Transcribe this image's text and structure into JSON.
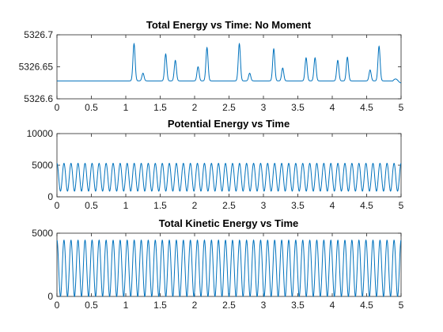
{
  "chart_data": [
    {
      "type": "line",
      "title": "Total Energy vs Time: No Moment",
      "xlabel": "",
      "ylabel": "",
      "xlim": [
        0,
        5
      ],
      "ylim": [
        5326.6,
        5326.7
      ],
      "xticks": [
        0,
        0.5,
        1,
        1.5,
        2,
        2.5,
        3,
        3.5,
        4,
        4.5,
        5
      ],
      "xtick_labels": [
        "0",
        "0.5",
        "1",
        "1.5",
        "2",
        "2.5",
        "3",
        "3.5",
        "4",
        "4.5",
        "5"
      ],
      "yticks": [
        5326.6,
        5326.65,
        5326.7
      ],
      "ytick_labels": [
        "5326.6",
        "5326.65",
        "5326.7"
      ],
      "grid": false,
      "color": "#0072BD",
      "series": [
        {
          "baseline": 5326.628,
          "peaks": [
            {
              "x": 1.12,
              "y": 5326.686
            },
            {
              "x": 1.25,
              "y": 5326.64
            },
            {
              "x": 1.58,
              "y": 5326.67
            },
            {
              "x": 1.72,
              "y": 5326.66
            },
            {
              "x": 2.05,
              "y": 5326.65
            },
            {
              "x": 2.18,
              "y": 5326.68
            },
            {
              "x": 2.65,
              "y": 5326.686
            },
            {
              "x": 2.8,
              "y": 5326.64
            },
            {
              "x": 3.15,
              "y": 5326.678
            },
            {
              "x": 3.28,
              "y": 5326.648
            },
            {
              "x": 3.62,
              "y": 5326.664
            },
            {
              "x": 3.75,
              "y": 5326.664
            },
            {
              "x": 4.08,
              "y": 5326.66
            },
            {
              "x": 4.22,
              "y": 5326.665
            },
            {
              "x": 4.55,
              "y": 5326.645
            },
            {
              "x": 4.68,
              "y": 5326.682
            }
          ]
        }
      ]
    },
    {
      "type": "line",
      "title": "Potential Energy vs Time",
      "xlabel": "",
      "ylabel": "",
      "xlim": [
        0,
        5
      ],
      "ylim": [
        0,
        10000
      ],
      "xticks": [
        0,
        0.5,
        1,
        1.5,
        2,
        2.5,
        3,
        3.5,
        4,
        4.5,
        5
      ],
      "xtick_labels": [
        "0",
        "0.5",
        "1",
        "1.5",
        "2",
        "2.5",
        "3",
        "3.5",
        "4",
        "4.5",
        "5"
      ],
      "yticks": [
        0,
        5000,
        10000
      ],
      "ytick_labels": [
        "0",
        "5000",
        "10000"
      ],
      "grid": false,
      "color": "#0072BD",
      "series": [
        {
          "min": 900,
          "max": 5300,
          "cycles": 49
        }
      ]
    },
    {
      "type": "line",
      "title": "Total Kinetic Energy vs Time",
      "xlabel": "",
      "ylabel": "",
      "xlim": [
        0,
        5
      ],
      "ylim": [
        0,
        5000
      ],
      "xticks": [
        0,
        0.5,
        1,
        1.5,
        2,
        2.5,
        3,
        3.5,
        4,
        4.5,
        5
      ],
      "xtick_labels": [
        "0",
        "0.5",
        "1",
        "1.5",
        "2",
        "2.5",
        "3",
        "3.5",
        "4",
        "4.5",
        "5"
      ],
      "yticks": [
        0,
        5000
      ],
      "ytick_labels": [
        "0",
        "5000"
      ],
      "grid": false,
      "color": "#0072BD",
      "series": [
        {
          "min": 0,
          "max": 4450,
          "cycles": 49
        }
      ]
    }
  ]
}
